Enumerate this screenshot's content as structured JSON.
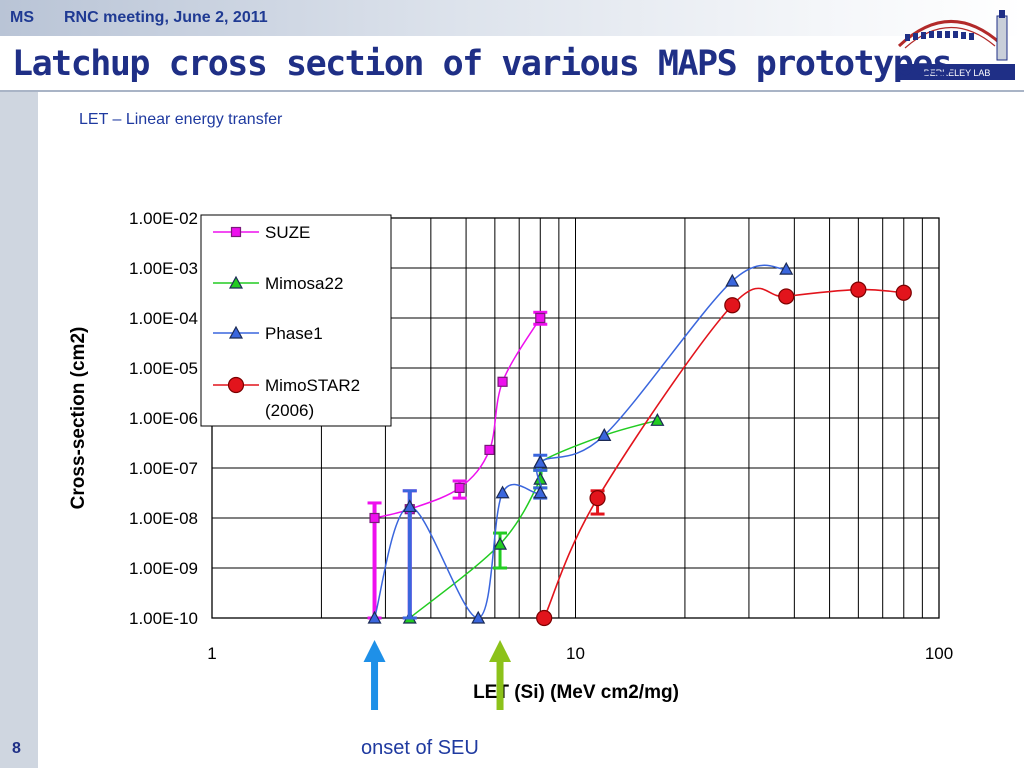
{
  "header": {
    "ms": "MS",
    "meeting": "RNC meeting, June 2, 2011",
    "title": "Latchup cross section of various MAPS prototypes",
    "subtitle": "LET – Linear energy transfer"
  },
  "footer": {
    "page_number": "8",
    "onset_label": "onset of SEU"
  },
  "logo": {
    "text": "BERKELEY LAB"
  },
  "colors": {
    "title": "#1f2f86",
    "header": "#1f3a93",
    "SUZE": "#ee10ee",
    "Mimosa22": "#22cc22",
    "Phase1": "#3a66dd",
    "MimoSTAR2": "#e2141c",
    "arrow_blue": "#1e90e8",
    "arrow_green": "#8cc21a"
  },
  "chart_data": {
    "type": "scatter",
    "xscale": "log",
    "yscale": "log",
    "xlim": [
      1,
      100
    ],
    "ylim": [
      1e-10,
      0.01
    ],
    "xlabel": "LET (Si) (MeV cm2/mg)",
    "ylabel": "Cross-section (cm2)",
    "xticks": [
      "1",
      "10",
      "100"
    ],
    "yticks": [
      "1.00E-10",
      "1.00E-09",
      "1.00E-08",
      "1.00E-07",
      "1.00E-06",
      "1.00E-05",
      "1.00E-04",
      "1.00E-03",
      "1.00E-02"
    ],
    "grid": true,
    "legend_position": "top-left",
    "series": [
      {
        "name": "SUZE",
        "marker": "square",
        "points": [
          {
            "x": 2.8,
            "y": 1e-08,
            "err": [
              1e-10,
              2e-08
            ]
          },
          {
            "x": 3.5,
            "y": 1.5e-08,
            "err": [
              1e-10,
              3.5e-08
            ]
          },
          {
            "x": 4.8,
            "y": 4e-08,
            "err": [
              2.5e-08,
              5.5e-08
            ]
          },
          {
            "x": 5.8,
            "y": 2.3e-07
          },
          {
            "x": 6.3,
            "y": 5.3e-06
          },
          {
            "x": 8.0,
            "y": 0.0001,
            "err": [
              7.5e-05,
              0.00013
            ]
          }
        ]
      },
      {
        "name": "Mimosa22",
        "marker": "triangle",
        "points": [
          {
            "x": 3.5,
            "y": 1e-10
          },
          {
            "x": 6.2,
            "y": 3e-09,
            "err": [
              1e-09,
              5e-09
            ]
          },
          {
            "x": 8.0,
            "y": 6e-08,
            "err": [
              4e-08,
              9e-08
            ]
          },
          {
            "x": 8.0,
            "y": 1.3e-07
          },
          {
            "x": 12.0,
            "y": 4.5e-07
          },
          {
            "x": 16.8,
            "y": 9e-07
          }
        ]
      },
      {
        "name": "Phase1",
        "marker": "triangle",
        "points": [
          {
            "x": 2.8,
            "y": 1e-10
          },
          {
            "x": 3.5,
            "y": 1.7e-08,
            "err": [
              1e-10,
              3.5e-08
            ]
          },
          {
            "x": 5.4,
            "y": 1e-10
          },
          {
            "x": 6.3,
            "y": 3.2e-08
          },
          {
            "x": 8.0,
            "y": 3.2e-08,
            "err": [
              2.5e-08,
              4e-08
            ]
          },
          {
            "x": 8.0,
            "y": 1.3e-07,
            "err": [
              9e-08,
              1.8e-07
            ]
          },
          {
            "x": 12.0,
            "y": 4.5e-07
          },
          {
            "x": 27.0,
            "y": 0.00055
          },
          {
            "x": 38.0,
            "y": 0.00095
          }
        ]
      },
      {
        "name": "MimoSTAR2 (2006)",
        "marker": "circle",
        "points": [
          {
            "x": 8.2,
            "y": 1e-10
          },
          {
            "x": 11.5,
            "y": 2.5e-08,
            "err": [
              1.2e-08,
              3.5e-08
            ]
          },
          {
            "x": 27.0,
            "y": 0.00018
          },
          {
            "x": 38.0,
            "y": 0.00027
          },
          {
            "x": 60.0,
            "y": 0.00037
          },
          {
            "x": 80.0,
            "y": 0.00032
          }
        ]
      }
    ],
    "annotations": [
      {
        "text": "",
        "type": "arrow",
        "x": 2.8,
        "color": "arrow_blue"
      },
      {
        "text": "onset of SEU",
        "type": "arrow",
        "x": 6.2,
        "color": "arrow_green"
      }
    ]
  }
}
